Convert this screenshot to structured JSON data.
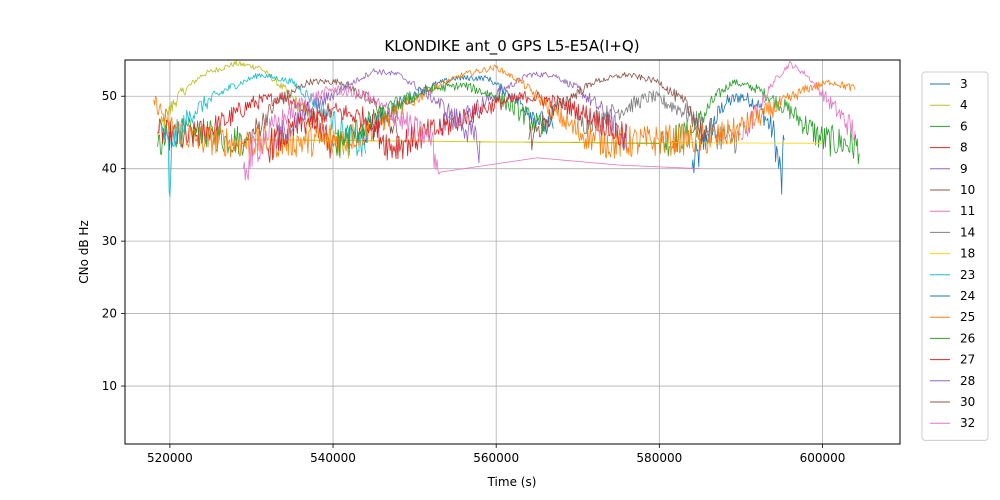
{
  "chart_data": {
    "type": "line",
    "title": "KLONDIKE ant_0 GPS L5-E5A(I+Q)",
    "xlabel": "Time (s)",
    "ylabel": "CNo dB Hz",
    "xlim": [
      514500,
      609500
    ],
    "ylim": [
      2,
      55
    ],
    "xticks": [
      520000,
      540000,
      560000,
      580000,
      600000
    ],
    "yticks": [
      10,
      20,
      30,
      40,
      50
    ],
    "grid": true,
    "legend_position": "right",
    "series": [
      {
        "name": "3",
        "color": "#1f77b4",
        "points": [
          [
            584000,
            40
          ],
          [
            586500,
            46
          ],
          [
            588000,
            49
          ],
          [
            590000,
            50
          ],
          [
            592000,
            49
          ],
          [
            594000,
            45
          ],
          [
            595000,
            38
          ],
          [
            595300,
            44
          ]
        ]
      },
      {
        "name": "4",
        "color": "#bcbd22",
        "points": [
          [
            518500,
            45
          ],
          [
            521000,
            50
          ],
          [
            524000,
            53
          ],
          [
            528000,
            54.5
          ],
          [
            531000,
            54
          ],
          [
            534000,
            51
          ],
          [
            537000,
            47
          ],
          [
            540000,
            44
          ],
          [
            542000,
            43.5
          ]
        ]
      },
      {
        "name": "6",
        "color": "#2ca02c",
        "points": [
          [
            518500,
            43
          ],
          [
            521000,
            45
          ],
          [
            524000,
            45
          ],
          [
            527000,
            44
          ],
          [
            529000,
            44
          ],
          [
            580000,
            43.5
          ],
          [
            584000,
            45
          ],
          [
            587000,
            50
          ],
          [
            589000,
            52
          ],
          [
            592000,
            51
          ],
          [
            596000,
            48
          ],
          [
            600000,
            44
          ],
          [
            603000,
            43.5
          ],
          [
            604500,
            43
          ]
        ]
      },
      {
        "name": "8",
        "color": "#d62728",
        "points": [
          [
            518500,
            45
          ],
          [
            522000,
            44
          ],
          [
            526000,
            46
          ],
          [
            530000,
            49
          ],
          [
            534000,
            50
          ],
          [
            537000,
            48
          ],
          [
            540000,
            43
          ]
        ]
      },
      {
        "name": "9",
        "color": "#9467bd",
        "points": [
          [
            553000,
            46
          ],
          [
            557000,
            48
          ],
          [
            561000,
            51
          ],
          [
            564000,
            53
          ],
          [
            567000,
            53
          ],
          [
            570000,
            51
          ],
          [
            573000,
            48
          ],
          [
            576000,
            44
          ]
        ]
      },
      {
        "name": "10",
        "color": "#8c564b",
        "points": [
          [
            529000,
            43
          ],
          [
            533000,
            49
          ],
          [
            537000,
            52
          ],
          [
            541000,
            52
          ],
          [
            545000,
            49
          ],
          [
            548000,
            45
          ]
        ]
      },
      {
        "name": "11",
        "color": "#e377c2",
        "points": [
          [
            590000,
            44
          ],
          [
            592000,
            48
          ],
          [
            594000,
            52
          ],
          [
            596000,
            54.5
          ],
          [
            598000,
            53
          ],
          [
            601000,
            49
          ],
          [
            604000,
            45
          ]
        ]
      },
      {
        "name": "14",
        "color": "#7f7f7f",
        "points": [
          [
            570000,
            46
          ],
          [
            575000,
            48
          ],
          [
            579000,
            50
          ],
          [
            583000,
            48
          ],
          [
            586000,
            45
          ],
          [
            590000,
            44
          ]
        ]
      },
      {
        "name": "18",
        "color": "#ffd700",
        "points": [
          [
            530000,
            44
          ],
          [
            560000,
            43.7
          ],
          [
            600000,
            43.5
          ]
        ]
      },
      {
        "name": "23",
        "color": "#17becf",
        "points": [
          [
            519000,
            46
          ],
          [
            519800,
            43
          ],
          [
            520000,
            33.5
          ],
          [
            520300,
            44
          ],
          [
            523000,
            48
          ],
          [
            527000,
            51
          ],
          [
            531000,
            53
          ],
          [
            535000,
            52
          ],
          [
            539000,
            48
          ],
          [
            542000,
            44
          ],
          [
            544000,
            43
          ]
        ]
      },
      {
        "name": "24",
        "color": "#1f77b4",
        "points": [
          [
            543000,
            44
          ],
          [
            547000,
            48
          ],
          [
            551000,
            51
          ],
          [
            555000,
            52.5
          ],
          [
            559000,
            52.5
          ],
          [
            563000,
            49
          ],
          [
            567000,
            45
          ]
        ]
      },
      {
        "name": "25",
        "color": "#ff7f0e",
        "points": [
          [
            518000,
            49.5
          ],
          [
            520000,
            46
          ],
          [
            523000,
            44
          ],
          [
            526000,
            44
          ],
          [
            529000,
            43.5
          ],
          [
            541000,
            44
          ],
          [
            544000,
            45
          ],
          [
            548000,
            48
          ],
          [
            552000,
            51
          ],
          [
            556000,
            53
          ],
          [
            560000,
            54
          ],
          [
            563000,
            52
          ],
          [
            567000,
            48
          ],
          [
            570000,
            45
          ],
          [
            574000,
            43.5
          ],
          [
            582000,
            44
          ],
          [
            586000,
            44
          ],
          [
            589000,
            45
          ],
          [
            592000,
            47
          ],
          [
            595000,
            49
          ],
          [
            598000,
            51
          ],
          [
            601000,
            52
          ],
          [
            604000,
            51
          ]
        ]
      },
      {
        "name": "26",
        "color": "#2ca02c",
        "points": [
          [
            540000,
            43
          ],
          [
            544000,
            46
          ],
          [
            548000,
            49
          ],
          [
            552000,
            51
          ],
          [
            556000,
            51.5
          ],
          [
            560000,
            50
          ],
          [
            564000,
            47
          ],
          [
            566000,
            45
          ]
        ]
      },
      {
        "name": "27",
        "color": "#d62728",
        "points": [
          [
            532000,
            43
          ],
          [
            536000,
            46
          ],
          [
            540000,
            48
          ],
          [
            544000,
            47
          ],
          [
            547000,
            43
          ],
          [
            552000,
            45
          ],
          [
            556000,
            47
          ],
          [
            560000,
            49
          ],
          [
            564000,
            50
          ],
          [
            568000,
            49
          ],
          [
            572000,
            47
          ],
          [
            576000,
            44
          ]
        ]
      },
      {
        "name": "28",
        "color": "#9467bd",
        "points": [
          [
            533000,
            44
          ],
          [
            537000,
            48
          ],
          [
            541000,
            51
          ],
          [
            545000,
            53.5
          ],
          [
            548000,
            53
          ],
          [
            552000,
            50
          ],
          [
            556000,
            46
          ],
          [
            558000,
            43
          ]
        ]
      },
      {
        "name": "30",
        "color": "#8c564b",
        "points": [
          [
            564000,
            44
          ],
          [
            568000,
            49
          ],
          [
            572000,
            52
          ],
          [
            576000,
            53
          ],
          [
            580000,
            52
          ],
          [
            584000,
            48
          ],
          [
            586000,
            43
          ]
        ]
      },
      {
        "name": "32",
        "color": "#e377c2",
        "points": [
          [
            529000,
            40
          ],
          [
            532000,
            45
          ],
          [
            536000,
            49
          ],
          [
            540000,
            51
          ],
          [
            544000,
            50
          ],
          [
            548000,
            47
          ],
          [
            552000,
            44
          ],
          [
            553000,
            39.5
          ],
          [
            565000,
            41.5
          ],
          [
            575000,
            40.5
          ],
          [
            585000,
            40
          ]
        ]
      }
    ]
  }
}
